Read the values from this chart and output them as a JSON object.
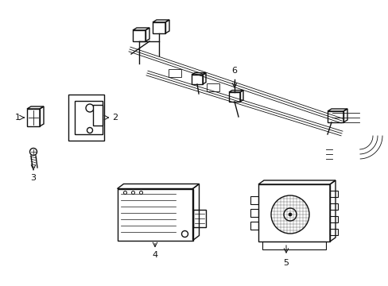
{
  "bg_color": "#ffffff",
  "line_color": "#111111",
  "lw": 1.0,
  "lw_thin": 0.6,
  "lw_thick": 1.5,
  "label_fontsize": 8,
  "fig_width": 4.89,
  "fig_height": 3.6,
  "dpi": 100
}
